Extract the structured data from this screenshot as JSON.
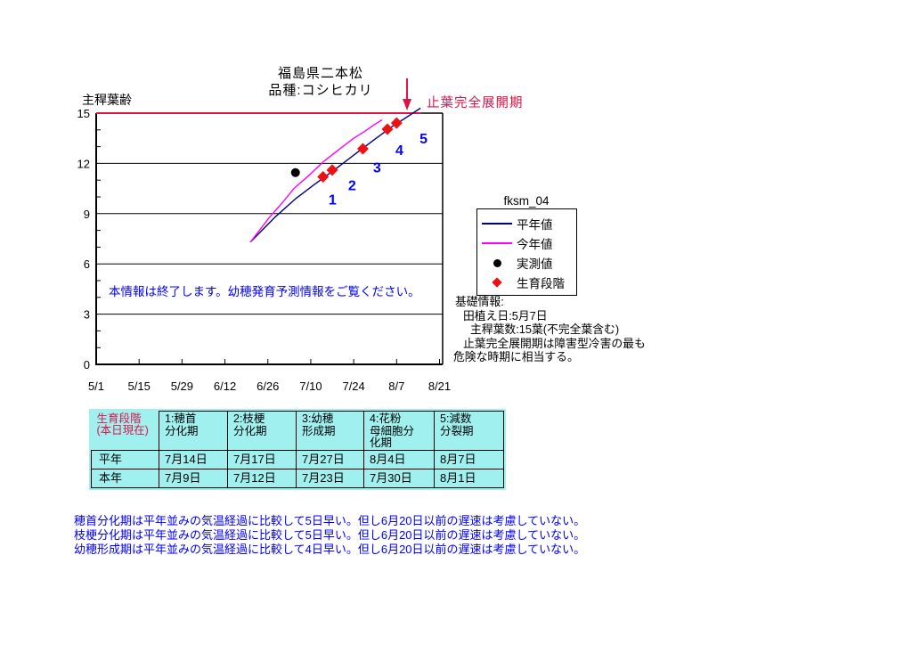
{
  "colors": {
    "accent_red": "#dc1446",
    "navy": "#000080",
    "magenta": "#ff00ff",
    "diamond_red": "#ee1111",
    "blue": "#0000ff",
    "table_bg": "#a0f0f0",
    "black": "#000000"
  },
  "page": {
    "title_line1": "福島県二本松",
    "title_line2": "品種:コシヒカリ"
  },
  "chart": {
    "y_axis_title": "主稈葉齢",
    "flag_leaf_label": "止葉完全展開期",
    "notice": "本情報は終了します。幼穂発育予測情報をご覧ください。",
    "legend_title": "fksm_04",
    "legend": {
      "items": [
        {
          "label": "平年値",
          "swatch": "navy-line"
        },
        {
          "label": "今年値",
          "swatch": "magenta-line"
        },
        {
          "label": "実測値",
          "swatch": "black-dot"
        },
        {
          "label": "生育段階",
          "swatch": "red-diamond"
        }
      ]
    }
  },
  "chart_data": {
    "type": "line",
    "title": "福島県二本松 品種:コシヒカリ",
    "ylabel": "主稈葉齢",
    "ylim": [
      0,
      15
    ],
    "y_ticks": [
      0,
      3,
      6,
      9,
      12,
      15
    ],
    "x_ticks": [
      {
        "day": 0,
        "label": "5/1"
      },
      {
        "day": 14,
        "label": "5/15"
      },
      {
        "day": 28,
        "label": "5/29"
      },
      {
        "day": 42,
        "label": "6/12"
      },
      {
        "day": 56,
        "label": "6/26"
      },
      {
        "day": 70,
        "label": "7/10"
      },
      {
        "day": 84,
        "label": "7/24"
      },
      {
        "day": 98,
        "label": "8/7"
      },
      {
        "day": 112,
        "label": "8/21"
      }
    ],
    "series": [
      {
        "name": "平年値",
        "color_key": "navy",
        "points": [
          [
            50.3,
            7.3
          ],
          [
            58.4,
            8.8
          ],
          [
            65.1,
            9.9
          ],
          [
            70.9,
            10.7
          ],
          [
            77.6,
            11.6
          ],
          [
            84.8,
            12.6
          ],
          [
            90.6,
            13.4
          ],
          [
            96.5,
            14.2
          ],
          [
            100.8,
            14.7
          ],
          [
            105.8,
            15.3
          ]
        ]
      },
      {
        "name": "今年値",
        "color_key": "magenta",
        "points": [
          [
            50.3,
            7.3
          ],
          [
            56.6,
            8.8
          ],
          [
            60.5,
            9.6
          ],
          [
            64.5,
            10.5
          ],
          [
            69.5,
            11.3
          ],
          [
            74.1,
            12.1
          ],
          [
            79.0,
            12.8
          ],
          [
            84.0,
            13.5
          ],
          [
            87.5,
            13.9
          ],
          [
            90.6,
            14.3
          ],
          [
            93.3,
            14.6
          ]
        ]
      }
    ],
    "measured_point": {
      "name": "実測値",
      "day": 65,
      "leaf": 11.45
    },
    "stage_points": {
      "name": "生育段階",
      "color_key": "diamond_red",
      "points": [
        [
          74,
          11.2
        ],
        [
          77,
          11.6
        ],
        [
          87,
          12.87
        ],
        [
          95,
          14.04
        ],
        [
          98,
          14.41
        ]
      ]
    },
    "stage_labels": [
      {
        "text": "1",
        "day": 75.8,
        "leaf": 9.55
      },
      {
        "text": "2",
        "day": 82.2,
        "leaf": 10.4
      },
      {
        "text": "3",
        "day": 90.3,
        "leaf": 11.45
      },
      {
        "text": "4",
        "day": 97.6,
        "leaf": 12.5
      },
      {
        "text": "5",
        "day": 105.5,
        "leaf": 13.2
      }
    ],
    "red_top_line": {
      "leaf": 15,
      "day_from": 0,
      "day_to": 106
    },
    "flag_leaf_arrow_day": 101.4
  },
  "info": {
    "heading": "基礎情報:",
    "line1": "田植え日:5月7日",
    "line2": "主稈葉数:15葉(不完全葉含む)",
    "line3": "止葉完全展開期は障害型冷害の最も",
    "line4": "危険な時期に相当する。"
  },
  "table": {
    "header": [
      "生育段階\n(本日現在)",
      "1:穂首\n分化期",
      "2:枝梗\n分化期",
      "3:幼穂\n形成期",
      "4:花粉\n母細胞分\n化期",
      "5:減数\n分裂期"
    ],
    "rows": [
      {
        "label": "平年",
        "values": [
          "7月14日",
          "7月17日",
          "7月27日",
          "8月4日",
          "8月7日"
        ]
      },
      {
        "label": "本年",
        "values": [
          "7月9日",
          "7月12日",
          "7月23日",
          "7月30日",
          "8月1日"
        ]
      }
    ]
  },
  "notes": [
    "穂首分化期は平年並みの気温経過に比較して5日早い。但し6月20日以前の遅速は考慮していない。",
    "枝梗分化期は平年並みの気温経過に比較して5日早い。但し6月20日以前の遅速は考慮していない。",
    "幼穂形成期は平年並みの気温経過に比較して4日早い。但し6月20日以前の遅速は考慮していない。"
  ]
}
